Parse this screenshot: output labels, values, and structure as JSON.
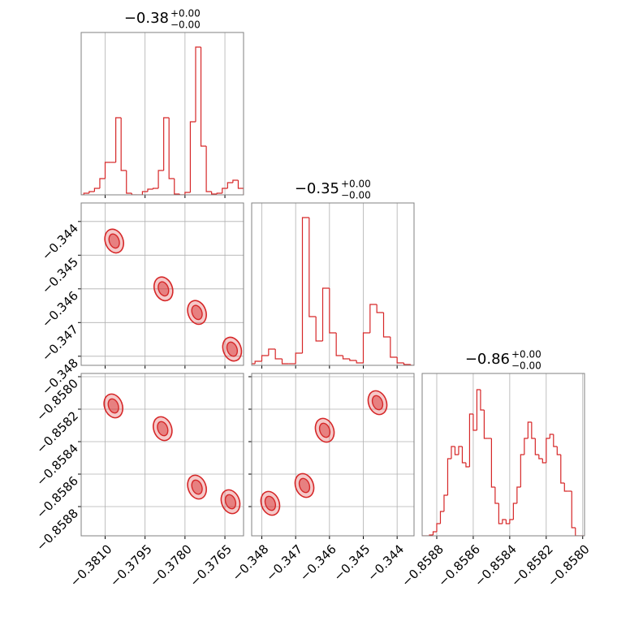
{
  "chart_data": [
    {
      "type": "histogram",
      "title": "−0.38",
      "title_upper": "+0.00",
      "title_lower": "−0.00",
      "color": "#d62728",
      "xlim": [
        -0.3819,
        -0.3758
      ],
      "ylim": [
        0,
        200
      ],
      "xticks": [
        {
          "value": -0.381,
          "label": "−0.3810"
        },
        {
          "value": -0.3795,
          "label": "−0.3795"
        },
        {
          "value": -0.378,
          "label": "−0.3780"
        },
        {
          "value": -0.3765,
          "label": "−0.3765"
        }
      ],
      "bins": [
        -0.382,
        -0.3818,
        -0.3816,
        -0.3814,
        -0.3812,
        -0.381,
        -0.3808,
        -0.3806,
        -0.3804,
        -0.3802,
        -0.38,
        -0.3798,
        -0.3796,
        -0.3794,
        -0.3792,
        -0.379,
        -0.3788,
        -0.3786,
        -0.3784,
        -0.3782,
        -0.378,
        -0.3778,
        -0.3776,
        -0.3774,
        -0.3772,
        -0.377,
        -0.3768,
        -0.3766,
        -0.3764,
        -0.3762,
        -0.376,
        -0.3758
      ],
      "counts": [
        0,
        2,
        4,
        8,
        20,
        40,
        40,
        95,
        30,
        2,
        0,
        0,
        4,
        7,
        8,
        30,
        95,
        20,
        1,
        0,
        3,
        90,
        182,
        60,
        4,
        1,
        2,
        8,
        15,
        18,
        8
      ]
    },
    {
      "type": "contour",
      "color": "#d62728",
      "xlim": [
        -0.3819,
        -0.3758
      ],
      "ylim": [
        -0.34827,
        -0.34345
      ],
      "xticks": [
        {
          "value": -0.381,
          "label": "−0.3810"
        },
        {
          "value": -0.3795,
          "label": "−0.3795"
        },
        {
          "value": -0.378,
          "label": "−0.3780"
        },
        {
          "value": -0.3765,
          "label": "−0.3765"
        }
      ],
      "yticks": [
        {
          "value": -0.344,
          "label": "−0.344"
        },
        {
          "value": -0.345,
          "label": "−0.345"
        },
        {
          "value": -0.346,
          "label": "−0.346"
        },
        {
          "value": -0.347,
          "label": "−0.347"
        },
        {
          "value": -0.348,
          "label": "−0.348"
        }
      ],
      "x": [
        -0.38066,
        -0.37881,
        -0.37755,
        -0.37623
      ],
      "y": [
        -0.34458,
        -0.346,
        -0.3467,
        -0.34779
      ]
    },
    {
      "type": "histogram",
      "title": "−0.35",
      "title_upper": "+0.00",
      "title_lower": "−0.00",
      "color": "#d62728",
      "xlim": [
        -0.3483,
        -0.3435
      ],
      "ylim": [
        0,
        200
      ],
      "xticks": [
        {
          "value": -0.348,
          "label": "−0.348"
        },
        {
          "value": -0.347,
          "label": "−0.347"
        },
        {
          "value": -0.346,
          "label": "−0.346"
        },
        {
          "value": -0.345,
          "label": "−0.345"
        },
        {
          "value": -0.344,
          "label": "−0.344"
        }
      ],
      "bins": [
        -0.3484,
        -0.3482,
        -0.348,
        -0.3478,
        -0.3476,
        -0.3474,
        -0.3472,
        -0.347,
        -0.3468,
        -0.3466,
        -0.3464,
        -0.3462,
        -0.346,
        -0.3458,
        -0.3456,
        -0.3454,
        -0.3452,
        -0.345,
        -0.3448,
        -0.3446,
        -0.3444,
        -0.3442,
        -0.344,
        -0.3438,
        -0.3436,
        -0.3434
      ],
      "counts": [
        2,
        5,
        12,
        20,
        8,
        2,
        2,
        15,
        182,
        60,
        30,
        95,
        40,
        12,
        8,
        6,
        3,
        40,
        75,
        65,
        35,
        10,
        3,
        1,
        0
      ]
    },
    {
      "type": "contour",
      "color": "#d62728",
      "xlim": [
        -0.3819,
        -0.3758
      ],
      "ylim": [
        -0.85898,
        -0.85798
      ],
      "xticks": [
        {
          "value": -0.381,
          "label": "−0.3810"
        },
        {
          "value": -0.3795,
          "label": "−0.3795"
        },
        {
          "value": -0.378,
          "label": "−0.3780"
        },
        {
          "value": -0.3765,
          "label": "−0.3765"
        }
      ],
      "yticks": [
        {
          "value": -0.858,
          "label": "−0.8580"
        },
        {
          "value": -0.8582,
          "label": "−0.8582"
        },
        {
          "value": -0.8584,
          "label": "−0.8584"
        },
        {
          "value": -0.8586,
          "label": "−0.8586"
        },
        {
          "value": -0.8588,
          "label": "−0.8588"
        }
      ],
      "x": [
        -0.38069,
        -0.37884,
        -0.37755,
        -0.37629
      ],
      "y": [
        -0.85818,
        -0.85832,
        -0.85868,
        -0.85877
      ]
    },
    {
      "type": "contour",
      "color": "#d62728",
      "xlim": [
        -0.3483,
        -0.3435
      ],
      "ylim": [
        -0.85898,
        -0.85798
      ],
      "xticks": [
        {
          "value": -0.348,
          "label": "−0.348"
        },
        {
          "value": -0.347,
          "label": "−0.347"
        },
        {
          "value": -0.346,
          "label": "−0.346"
        },
        {
          "value": -0.345,
          "label": "−0.345"
        },
        {
          "value": -0.344,
          "label": "−0.344"
        }
      ],
      "yticks": [
        {
          "value": -0.858,
          "label": "−0.8580"
        },
        {
          "value": -0.8582,
          "label": "−0.8582"
        },
        {
          "value": -0.8584,
          "label": "−0.8584"
        },
        {
          "value": -0.8586,
          "label": "−0.8586"
        },
        {
          "value": -0.8588,
          "label": "−0.8588"
        }
      ],
      "x": [
        -0.34775,
        -0.34674,
        -0.34614,
        -0.34458
      ],
      "y": [
        -0.85878,
        -0.85867,
        -0.85833,
        -0.85816
      ]
    },
    {
      "type": "histogram",
      "title": "−0.86",
      "title_upper": "+0.00",
      "title_lower": "−0.00",
      "color": "#d62728",
      "xlim": [
        -0.85888,
        -0.85799
      ],
      "ylim": [
        0,
        200
      ],
      "xticks": [
        {
          "value": -0.8588,
          "label": "−0.8588"
        },
        {
          "value": -0.8586,
          "label": "−0.8586"
        },
        {
          "value": -0.8584,
          "label": "−0.8584"
        },
        {
          "value": -0.8582,
          "label": "−0.8582"
        },
        {
          "value": -0.858,
          "label": "−0.8580"
        }
      ],
      "bins": [
        -0.8589,
        -0.85888,
        -0.85886,
        -0.85884,
        -0.85882,
        -0.8588,
        -0.85878,
        -0.85876,
        -0.85874,
        -0.85872,
        -0.8587,
        -0.85868,
        -0.85866,
        -0.85864,
        -0.85862,
        -0.8586,
        -0.85858,
        -0.85856,
        -0.85854,
        -0.85852,
        -0.8585,
        -0.85848,
        -0.85846,
        -0.85844,
        -0.85842,
        -0.8584,
        -0.85838,
        -0.85836,
        -0.85834,
        -0.85832,
        -0.8583,
        -0.85828,
        -0.85826,
        -0.85824,
        -0.85822,
        -0.8582,
        -0.85818,
        -0.85816,
        -0.85814,
        -0.85812,
        -0.8581,
        -0.85808,
        -0.85806,
        -0.85804,
        -0.85802,
        -0.858,
        -0.85798
      ],
      "counts": [
        0,
        0,
        0,
        1,
        5,
        15,
        30,
        50,
        95,
        110,
        100,
        110,
        90,
        85,
        150,
        130,
        180,
        155,
        120,
        120,
        60,
        40,
        15,
        20,
        15,
        20,
        40,
        60,
        100,
        120,
        140,
        120,
        100,
        95,
        90,
        120,
        125,
        110,
        100,
        65,
        55,
        55,
        10,
        0,
        0,
        0
      ]
    }
  ]
}
